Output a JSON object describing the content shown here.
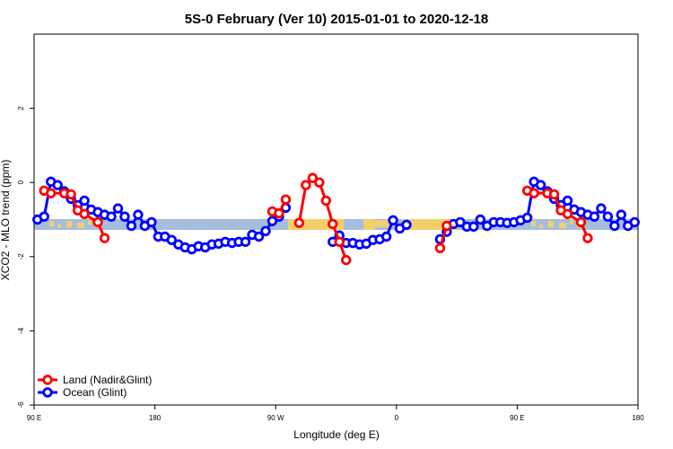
{
  "chart_data": {
    "type": "line",
    "title": "5S-0 February (Ver 10)   2015-01-01 to 2020-12-18",
    "x_label": "Longitude (deg E)",
    "y_label": "XCO2 - MLO trend (ppm)",
    "xlim": [
      90,
      540
    ],
    "ylim": [
      -6,
      4
    ],
    "xticks": [
      {
        "value": 90,
        "label": "90 E"
      },
      180,
      {
        "value": 270,
        "label": "90 W"
      },
      {
        "value": 360,
        "label": "0"
      },
      {
        "value": 450,
        "label": "90 E"
      },
      {
        "value": 540,
        "label": "180"
      }
    ],
    "yticks": [
      -6,
      -4,
      -2,
      0,
      2
    ],
    "legend": "bottom-left",
    "series": [
      {
        "name": "Land (Nadir&Glint)",
        "color": "#ff0000",
        "x": [
          97.5,
          102.5,
          112.5,
          117.5,
          122.5,
          127.5,
          137.5,
          142.5,
          null,
          267.5,
          272.5,
          277.5,
          null,
          287.5,
          292.5,
          297.5,
          302.5,
          307.5,
          312.5,
          317.5,
          322.5,
          null,
          392.5,
          397.5,
          null,
          457.5,
          462.5,
          472.5,
          477.5,
          482.5,
          487.5,
          497.5,
          502.5
        ],
        "values": [
          -0.22,
          -0.29,
          -0.29,
          -0.32,
          -0.75,
          -0.85,
          -1.07,
          -1.5,
          null,
          -0.78,
          -0.83,
          -0.46,
          null,
          -1.09,
          -0.07,
          0.12,
          0,
          -0.49,
          -1.12,
          -1.6,
          -2.09,
          null,
          -1.77,
          -1.17,
          null,
          -0.22,
          -0.29,
          -0.29,
          -0.32,
          -0.75,
          -0.85,
          -1.07,
          -1.5
        ]
      },
      {
        "name": "Ocean (Glint)",
        "color": "#0000ff",
        "x": [
          92.5,
          97.5,
          102.5,
          107.5,
          112.5,
          117.5,
          122.5,
          127.5,
          132.5,
          137.5,
          142.5,
          147.5,
          152.5,
          157.5,
          162.5,
          167.5,
          172.5,
          177.5,
          182.5,
          187.5,
          192.5,
          197.5,
          202.5,
          207.5,
          212.5,
          217.5,
          222.5,
          227.5,
          232.5,
          237.5,
          242.5,
          247.5,
          252.5,
          257.5,
          262.5,
          267.5,
          272.5,
          277.5,
          null,
          312.5,
          317.5,
          322.5,
          327.5,
          332.5,
          337.5,
          342.5,
          347.5,
          352.5,
          357.5,
          362.5,
          367.5,
          null,
          392.5,
          397.5,
          402.5,
          407.5,
          412.5,
          417.5,
          422.5,
          427.5,
          432.5,
          437.5,
          442.5,
          447.5,
          452.5,
          457.5,
          462.5,
          467.5,
          472.5,
          477.5,
          482.5,
          487.5,
          492.5,
          497.5,
          502.5,
          507.5,
          512.5,
          517.5,
          522.5,
          527.5,
          532.5,
          537.5
        ],
        "values": [
          -1.0,
          -0.92,
          0.02,
          -0.07,
          -0.24,
          -0.44,
          -0.61,
          -0.49,
          -0.73,
          -0.8,
          -0.87,
          -0.92,
          -0.7,
          -0.92,
          -1.17,
          -0.87,
          -1.17,
          -1.07,
          -1.46,
          -1.46,
          -1.55,
          -1.67,
          -1.75,
          -1.8,
          -1.72,
          -1.75,
          -1.67,
          -1.65,
          -1.6,
          -1.63,
          -1.6,
          -1.6,
          -1.41,
          -1.46,
          -1.31,
          -1.04,
          -0.92,
          -0.68,
          null,
          -1.6,
          -1.43,
          -1.63,
          -1.63,
          -1.67,
          -1.65,
          -1.55,
          -1.53,
          -1.46,
          -1.02,
          -1.24,
          -1.14,
          null,
          -1.53,
          -1.33,
          -1.12,
          -1.07,
          -1.19,
          -1.19,
          -1.0,
          -1.17,
          -1.07,
          -1.07,
          -1.09,
          -1.07,
          -1.02,
          -0.95,
          0.02,
          -0.07,
          -0.24,
          -0.44,
          -0.61,
          -0.49,
          -0.73,
          -0.8,
          -0.87,
          -0.92,
          -0.7,
          -0.92,
          -1.17,
          -0.87,
          -1.17,
          -1.07
        ]
      }
    ]
  }
}
